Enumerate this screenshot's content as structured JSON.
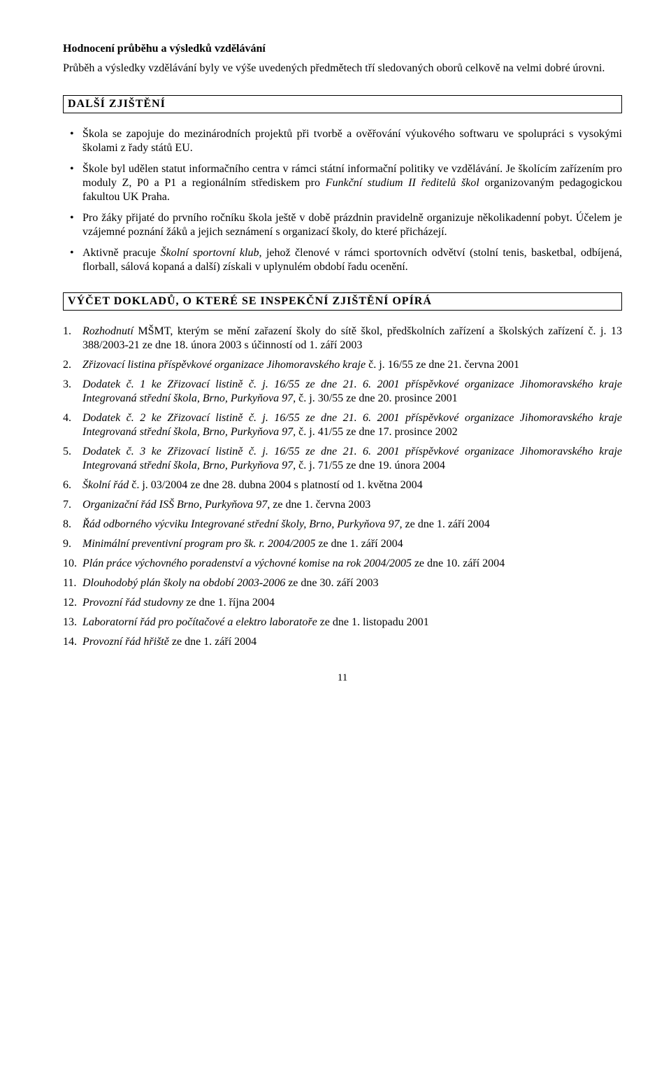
{
  "section1": {
    "heading": "Hodnocení průběhu a výsledků vzdělávání",
    "intro": "Průběh a výsledky vzdělávání byly ve výše uvedených předmětech tří sledovaných oborů celkově na velmi dobré úrovni."
  },
  "box1": "DALŠÍ  ZJIŠTĚNÍ",
  "bullets": {
    "b1a": "Škola se zapojuje do mezinárodních projektů při tvorbě a ověřování výukového softwaru ve spolupráci s vysokými školami z řady států EU.",
    "b2a": "Škole byl udělen statut informačního centra v rámci státní informační politiky ve vzdělávání. Je školícím zařízením pro moduly Z, P0 a P1 a regionálním střediskem pro ",
    "b2i": "Funkční studium II ředitelů škol",
    "b2b": " organizovaným pedagogickou fakultou UK Praha.",
    "b3a": "Pro žáky přijaté do prvního ročníku škola ještě v době prázdnin pravidelně organizuje několikadenní pobyt. Účelem je vzájemné poznání žáků a jejich seznámení s organizací školy, do které přicházejí.",
    "b4a": "Aktivně pracuje ",
    "b4i": "Školní sportovní klub",
    "b4b": ", jehož členové v rámci sportovních odvětví (stolní tenis, basketbal, odbíjená, florball, sálová kopaná a další) získali v uplynulém období řadu ocenění."
  },
  "box2": "VÝČET  DOKLADŮ,  O  KTERÉ  SE  INSPEKČNÍ  ZJIŠTĚNÍ  OPÍRÁ",
  "list": {
    "i1i": "Rozhodnutí",
    "i1a": " MŠMT, kterým se mění zařazení školy do sítě škol, předškolních zařízení a školských zařízení č. j. 13 388/2003-21 ze dne 18. února 2003 s účinností od 1. září 2003",
    "i2i": "Zřizovací listina příspěvkové organizace Jihomoravského kraje",
    "i2a": " č. j. 16/55 ze dne 21. června 2001",
    "i3i": "Dodatek č. 1 ke Zřizovací listině č. j. 16/55 ze dne 21. 6. 2001 příspěvkové organizace Jihomoravského kraje Integrovaná střední škola, Brno, Purkyňova 97,",
    "i3a": " č. j. 30/55 ze dne 20. prosince 2001",
    "i4i": "Dodatek č. 2 ke Zřizovací listině č. j. 16/55 ze dne 21. 6. 2001 příspěvkové organizace Jihomoravského kraje Integrovaná střední škola, Brno, Purkyňova 97,",
    "i4a": " č. j. 41/55 ze dne 17. prosince 2002",
    "i5i": "Dodatek č. 3 ke Zřizovací listině č. j. 16/55 ze dne 21. 6. 2001 příspěvkové organizace Jihomoravského kraje Integrovaná střední škola, Brno, Purkyňova 97,",
    "i5a": " č. j. 71/55 ze dne 19. února 2004",
    "i6i": "Školní řád",
    "i6a": " č. j. 03/2004 ze dne 28. dubna 2004 s platností od 1. května 2004",
    "i7i": "Organizační řád ISŠ Brno, Purkyňova 97,",
    "i7a": " ze dne 1. června 2003",
    "i8i": "Řád odborného výcviku Integrované střední školy, Brno, Purkyňova 97,",
    "i8a": " ze dne 1. září 2004",
    "i9i": "Minimální preventivní program pro šk. r. 2004/2005",
    "i9a": " ze dne 1. září 2004",
    "i10i": "Plán práce výchovného poradenství a výchovné komise na rok 2004/2005",
    "i10a": " ze dne 10. září 2004",
    "i11i": "Dlouhodobý plán školy na období 2003-2006",
    "i11a": " ze dne 30. září 2003",
    "i12i": "Provozní řád studovny",
    "i12a": " ze dne 1. října 2004",
    "i13i": "Laboratorní řád pro počítačové a elektro laboratoře",
    "i13a": " ze dne 1. listopadu 2001",
    "i14i": "Provozní řád hřiště",
    "i14a": " ze dne 1. září 2004"
  },
  "page_number": "11"
}
